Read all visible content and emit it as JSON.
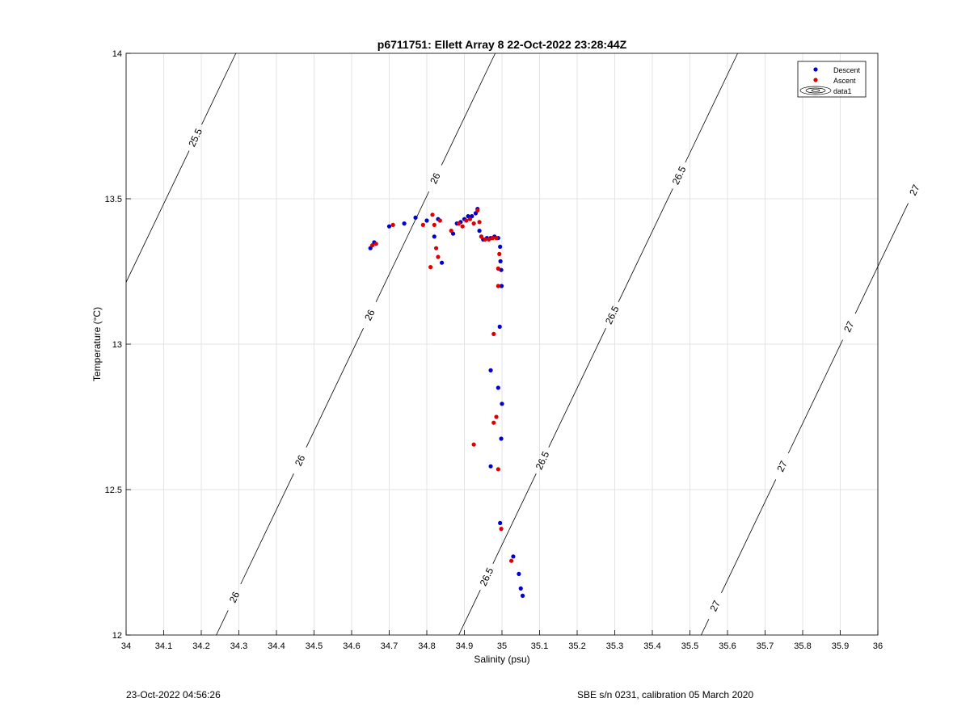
{
  "footer": {
    "timestamp": "23-Oct-2022 04:56:26",
    "calibration": "SBE s/n 0231, calibration 05 March 2020"
  },
  "chart_data": {
    "type": "scatter",
    "title": "p6711751: Ellett Array 8 22-Oct-2022 23:28:44Z",
    "xlabel": "Salinity (psu)",
    "ylabel": "Temperature (°C)",
    "xlim": [
      34,
      36
    ],
    "ylim": [
      12,
      14
    ],
    "xticks": [
      34,
      34.1,
      34.2,
      34.3,
      34.4,
      34.5,
      34.6,
      34.7,
      34.8,
      34.9,
      35,
      35.1,
      35.2,
      35.3,
      35.4,
      35.5,
      35.6,
      35.7,
      35.8,
      35.9,
      36
    ],
    "xtick_labels": [
      "34",
      "34.1",
      "34.2",
      "34.3",
      "34.4",
      "34.5",
      "34.6",
      "34.7",
      "34.8",
      "34.9",
      "35",
      "35.1",
      "35.2",
      "35.3",
      "35.4",
      "35.5",
      "35.6",
      "35.7",
      "35.8",
      "35.9",
      "36"
    ],
    "yticks": [
      12,
      12.5,
      13,
      13.5,
      14
    ],
    "ytick_labels": [
      "12",
      "12.5",
      "13",
      "13.5",
      "14"
    ],
    "grid": true,
    "legend_position": "top-right",
    "series": [
      {
        "name": "Descent",
        "color": "#0000cc",
        "marker": "dot",
        "points": [
          [
            34.65,
            13.33
          ],
          [
            34.66,
            13.35
          ],
          [
            34.7,
            13.405
          ],
          [
            34.74,
            13.415
          ],
          [
            34.77,
            13.435
          ],
          [
            34.8,
            13.425
          ],
          [
            34.82,
            13.37
          ],
          [
            34.83,
            13.43
          ],
          [
            34.84,
            13.28
          ],
          [
            34.87,
            13.38
          ],
          [
            34.88,
            13.415
          ],
          [
            34.89,
            13.42
          ],
          [
            34.9,
            13.43
          ],
          [
            34.91,
            13.44
          ],
          [
            34.92,
            13.44
          ],
          [
            34.93,
            13.45
          ],
          [
            34.935,
            13.465
          ],
          [
            34.94,
            13.39
          ],
          [
            34.945,
            13.37
          ],
          [
            34.95,
            13.36
          ],
          [
            34.96,
            13.365
          ],
          [
            34.97,
            13.365
          ],
          [
            34.98,
            13.37
          ],
          [
            34.99,
            13.365
          ],
          [
            34.995,
            13.335
          ],
          [
            34.996,
            13.285
          ],
          [
            34.998,
            13.255
          ],
          [
            34.999,
            13.2
          ],
          [
            34.994,
            13.06
          ],
          [
            34.97,
            12.91
          ],
          [
            34.99,
            12.85
          ],
          [
            35.0,
            12.795
          ],
          [
            34.998,
            12.675
          ],
          [
            34.97,
            12.58
          ],
          [
            34.995,
            12.385
          ],
          [
            35.03,
            12.27
          ],
          [
            35.045,
            12.21
          ],
          [
            35.05,
            12.16
          ],
          [
            35.055,
            12.135
          ]
        ]
      },
      {
        "name": "Ascent",
        "color": "#dd0000",
        "marker": "dot",
        "points": [
          [
            34.655,
            13.34
          ],
          [
            34.665,
            13.345
          ],
          [
            34.71,
            13.41
          ],
          [
            34.79,
            13.41
          ],
          [
            34.81,
            13.265
          ],
          [
            34.815,
            13.445
          ],
          [
            34.82,
            13.41
          ],
          [
            34.825,
            13.33
          ],
          [
            34.83,
            13.3
          ],
          [
            34.835,
            13.425
          ],
          [
            34.865,
            13.39
          ],
          [
            34.885,
            13.415
          ],
          [
            34.895,
            13.405
          ],
          [
            34.905,
            13.425
          ],
          [
            34.915,
            13.43
          ],
          [
            34.925,
            13.415
          ],
          [
            34.935,
            13.46
          ],
          [
            34.94,
            13.42
          ],
          [
            34.945,
            13.37
          ],
          [
            34.955,
            13.36
          ],
          [
            34.965,
            13.36
          ],
          [
            34.975,
            13.365
          ],
          [
            34.985,
            13.365
          ],
          [
            34.99,
            13.26
          ],
          [
            34.993,
            13.31
          ],
          [
            34.99,
            13.2
          ],
          [
            34.978,
            13.035
          ],
          [
            34.985,
            12.75
          ],
          [
            34.978,
            12.73
          ],
          [
            34.925,
            12.655
          ],
          [
            34.99,
            12.57
          ],
          [
            34.998,
            12.365
          ],
          [
            35.025,
            12.255
          ]
        ]
      }
    ],
    "isopycnals": [
      {
        "label": "25.5",
        "labels_at_T": [
          13.71
        ]
      },
      {
        "label": "26",
        "labels_at_T": [
          13.57,
          13.1,
          12.6,
          12.13
        ]
      },
      {
        "label": "26.5",
        "labels_at_T": [
          13.58,
          13.1,
          12.6,
          12.2
        ]
      },
      {
        "label": "27",
        "labels_at_T": [
          13.53,
          13.06,
          12.58,
          12.1
        ]
      }
    ],
    "legend_entries": [
      "Descent",
      "Ascent",
      "data1"
    ]
  }
}
